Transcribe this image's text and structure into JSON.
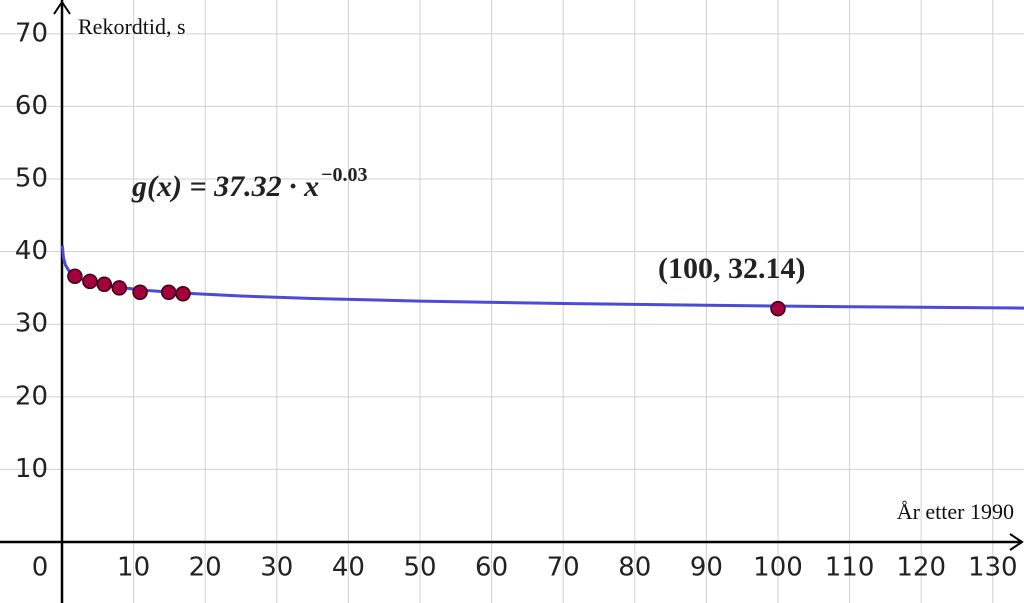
{
  "chart_data": {
    "type": "scatter",
    "y_label": "Rekordtid, s",
    "x_label": "År etter 1990",
    "function_label": "g(x) = 37.32 · x",
    "function_exponent": "−0.03",
    "point_label": "(100, 32.14)",
    "xlim": [
      -8.66,
      134.36
    ],
    "ylim": [
      -8.4,
      74.66
    ],
    "xticks": [
      0,
      10,
      20,
      30,
      40,
      50,
      60,
      70,
      80,
      90,
      100,
      110,
      120,
      130
    ],
    "yticks": [
      10,
      20,
      30,
      40,
      50,
      60,
      70
    ],
    "grid": true,
    "curve": {
      "color": "#4b4bd6",
      "x": [
        0.05,
        0.2,
        0.5,
        1,
        2,
        3,
        5,
        8,
        12,
        17,
        25,
        35,
        50,
        70,
        90,
        110,
        134.36
      ],
      "y": [
        40.83,
        39.17,
        38.1,
        37.32,
        36.55,
        36.11,
        35.56,
        35.06,
        34.64,
        34.28,
        33.88,
        33.54,
        33.19,
        32.85,
        32.61,
        32.41,
        32.22
      ]
    },
    "points": {
      "color": "#a3003c",
      "x": [
        1.8,
        3.9,
        5.9,
        8,
        10.9,
        14.9,
        16.9,
        100
      ],
      "y": [
        36.6,
        35.9,
        35.5,
        35.0,
        34.4,
        34.4,
        34.2,
        32.14
      ]
    }
  }
}
